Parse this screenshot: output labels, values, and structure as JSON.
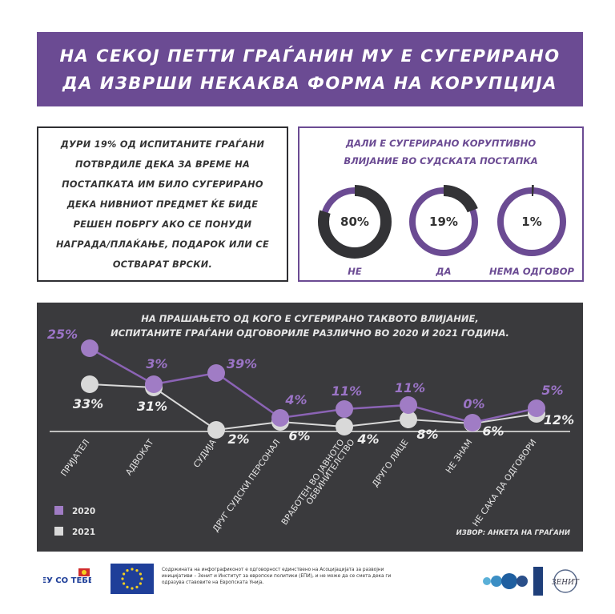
{
  "title": {
    "line1": "НА СЕКОЈ ПЕТТИ ГРАЃАНИН МУ Е СУГЕРИРАНО",
    "line2": "ДА ИЗВРШИ НЕКАКВА ФОРМА НА КОРУПЦИЈА"
  },
  "intro": {
    "lines": [
      "ДУРИ 19% ОД ИСПИТАНИТЕ ГРАЃАНИ",
      "ПОТВРДИЛЕ ДЕКА ЗА ВРЕМЕ НА",
      "ПОСТАПКАТА ИМ БИЛО СУГЕРИРАНО",
      "ДЕКА НИВНИОТ ПРЕДМЕТ ЌЕ БИДЕ",
      "РЕШЕН ПОБРГУ АКО СЕ ПОНУДИ",
      "НАГРАДА/ПЛАЌАЊЕ, ПОДАРОК ИЛИ СЕ",
      "ОСТВАРАТ ВРСКИ."
    ]
  },
  "donuts": {
    "question_line1": "ДАЛИ Е СУГЕРИРАНО КОРУПТИВНО",
    "question_line2": "ВЛИЈАНИЕ ВО СУДСКАТА ПОСТАПКА",
    "items": [
      {
        "label": "НЕ",
        "value": 80,
        "value_text": "80%"
      },
      {
        "label": "ДА",
        "value": 19,
        "value_text": "19%"
      },
      {
        "label": "НЕМА ОДГОВОР",
        "value": 1,
        "value_text": "1%"
      }
    ]
  },
  "colors": {
    "purple": "#6b4b93",
    "purple_light": "#8b63b5",
    "dark": "#3a3a3d",
    "donut_dark": "#333336",
    "grey_2021": "#d9d9d9",
    "marker_2020": "#a07cc5"
  },
  "chart_data": {
    "type": "line",
    "title_line1": "НА ПРАШАЊЕТО ОД КОГО Е СУГЕРИРАНО ТАКВОТО ВЛИЈАНИЕ,",
    "title_line2": "ИСПИТАНИТЕ ГРАЃАНИ ОДГОВОРИЛЕ РАЗЛИЧНО ВО 2020 И 2021 ГОДИНА.",
    "categories": [
      "ПРИЈАТЕЛ",
      "АДВОКАТ",
      "СУДИЈА",
      "ДРУГ СУДСКИ ПЕРСОНАЛ",
      "ВРАБОТЕН ВО ЈАВНОТО ОБВИНИТЕЛСТВО",
      "ДРУГО ЛИЦЕ",
      "НЕ ЗНАМ",
      "НЕ САКА ДА ОДГОВОРИ"
    ],
    "category_lines": [
      [
        "ПРИЈАТЕЛ"
      ],
      [
        "АДВОКАТ"
      ],
      [
        "СУДИЈА"
      ],
      [
        "ДРУГ СУДСКИ ПЕРСОНАЛ"
      ],
      [
        "ВРАБОТЕН ВО ЈАВНОТО",
        "ОБВИНИТЕЛСТВО"
      ],
      [
        "ДРУГО ЛИЦЕ"
      ],
      [
        "НЕ ЗНАМ"
      ],
      [
        "НЕ САКА ДА ОДГОВОРИ"
      ]
    ],
    "series": [
      {
        "name": "2020",
        "labels": [
          "25%",
          "3%",
          "39%",
          "4%",
          "11%",
          "11%",
          "0%",
          "5%"
        ],
        "color": "#8b63b5"
      },
      {
        "name": "2021",
        "labels": [
          "33%",
          "31%",
          "2%",
          "6%",
          "4%",
          "8%",
          "6%",
          "12%"
        ],
        "color": "#d9d9d9"
      }
    ],
    "legend": [
      "2020",
      "2021"
    ],
    "legend_position": "bottom-left",
    "source": "ИЗВОР: АНКЕТА НА ГРАЃАНИ"
  },
  "footer": {
    "eu_logo_text": "ЕУ СО ТЕБЕ",
    "disclaimer": "Содржината на инфографиконот е одговорност единствено на Асоцијацијата за развојни иницијативи – Зенит и Институт за европски политики (ЕПИ), и не може да се смета дека ги одразува ставовите на Европската Унија.",
    "partner_logo_text": "ЗЕНИТ"
  }
}
